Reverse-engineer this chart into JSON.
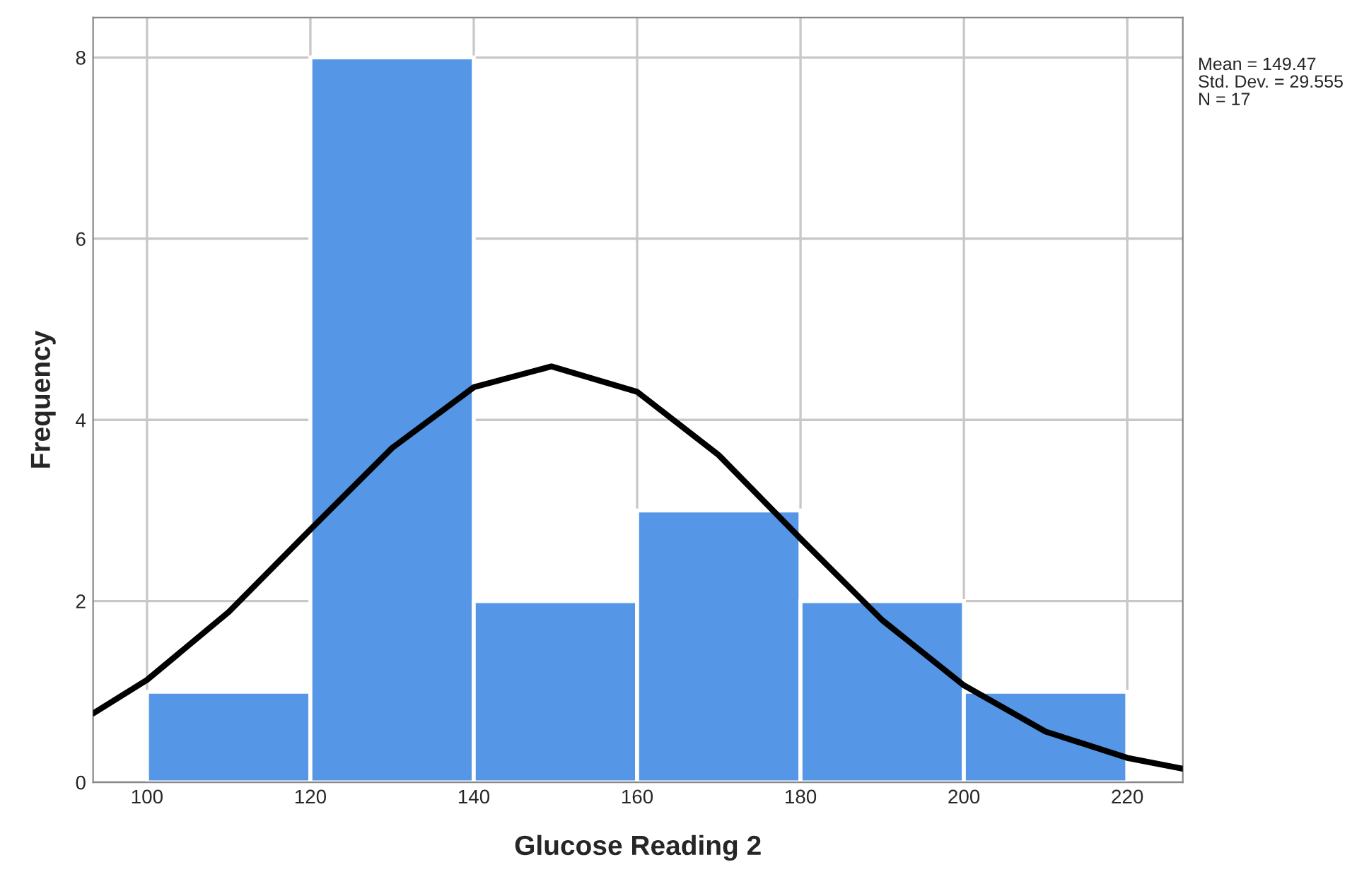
{
  "chart_data": {
    "type": "histogram",
    "xlabel": "Glucose Reading 2",
    "ylabel": "Frequency",
    "bins": [
      100,
      120,
      140,
      160,
      180,
      200,
      220
    ],
    "values": [
      1,
      8,
      2,
      3,
      2,
      1
    ],
    "color": "#5596e6",
    "series": [
      {
        "type": "line",
        "color": "#000000",
        "x": [
          93.4,
          100,
          110,
          120,
          130,
          140,
          149.5,
          160,
          170,
          180,
          190,
          200,
          210,
          220,
          226.8
        ],
        "values": [
          0.76,
          1.13,
          1.88,
          2.79,
          3.69,
          4.36,
          4.59,
          4.31,
          3.61,
          2.69,
          1.79,
          1.07,
          0.56,
          0.27,
          0.15
        ]
      }
    ],
    "xlim": [
      93.4,
      226.8
    ],
    "ylim": [
      0,
      8.44
    ],
    "xticks": [
      100,
      120,
      140,
      160,
      180,
      200,
      220
    ],
    "yticks": [
      0,
      2,
      4,
      6,
      8
    ],
    "grid": true,
    "annotations": [
      "Mean = 149.47",
      "Std. Dev. = 29.555",
      "N = 17"
    ]
  }
}
